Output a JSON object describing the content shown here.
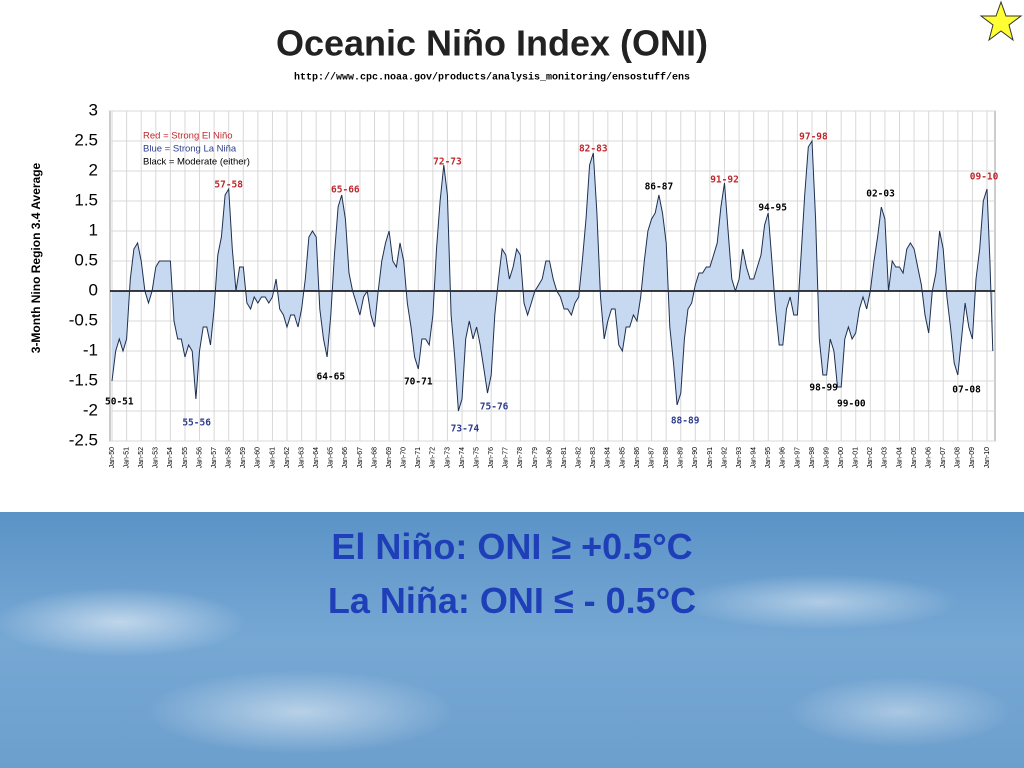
{
  "chart_data": {
    "type": "area",
    "title": "Oceanic Niño Index (ONI)",
    "subtitle": "http://www.cpc.noaa.gov/products/analysis_monitoring/ensostuff/ens",
    "ylabel": "3-Month Nino Region 3.4 Average",
    "legend_notes": [
      {
        "text": "Red = Strong El Niño",
        "color": "#c0272d"
      },
      {
        "text": "Blue = Strong La Niña",
        "color": "#2e3d8f"
      },
      {
        "text": "Black = Moderate (either)",
        "color": "#000000"
      }
    ],
    "fill_color": "#c6d9f1",
    "line_color": "#1f2f4f",
    "grid": true,
    "xlim": [
      1949.86,
      2010.55
    ],
    "ylim": [
      -2.5,
      3
    ],
    "yticks": [
      3,
      2.5,
      2,
      1.5,
      1,
      0.5,
      0,
      -0.5,
      -1,
      -1.5,
      -2,
      -2.5
    ],
    "xticks": [
      {
        "value": 1950,
        "label": "Jan-50"
      },
      {
        "value": 1951,
        "label": "Jan-51"
      },
      {
        "value": 1952,
        "label": "Jan-52"
      },
      {
        "value": 1953,
        "label": "Jan-53"
      },
      {
        "value": 1954,
        "label": "Jan-54"
      },
      {
        "value": 1955,
        "label": "Jan-55"
      },
      {
        "value": 1956,
        "label": "Jan-56"
      },
      {
        "value": 1957,
        "label": "Jan-57"
      },
      {
        "value": 1958,
        "label": "Jan-58"
      },
      {
        "value": 1959,
        "label": "Jan-59"
      },
      {
        "value": 1960,
        "label": "Jan-60"
      },
      {
        "value": 1961,
        "label": "Jan-61"
      },
      {
        "value": 1962,
        "label": "Jan-62"
      },
      {
        "value": 1963,
        "label": "Jan-63"
      },
      {
        "value": 1964,
        "label": "Jan-64"
      },
      {
        "value": 1965,
        "label": "Jan-65"
      },
      {
        "value": 1966,
        "label": "Jan-66"
      },
      {
        "value": 1967,
        "label": "Jan-67"
      },
      {
        "value": 1968,
        "label": "Jan-68"
      },
      {
        "value": 1969,
        "label": "Jan-69"
      },
      {
        "value": 1970,
        "label": "Jan-70"
      },
      {
        "value": 1971,
        "label": "Jan-71"
      },
      {
        "value": 1972,
        "label": "Jan-72"
      },
      {
        "value": 1973,
        "label": "Jan-73"
      },
      {
        "value": 1974,
        "label": "Jan-74"
      },
      {
        "value": 1975,
        "label": "Jan-75"
      },
      {
        "value": 1976,
        "label": "Jan-76"
      },
      {
        "value": 1977,
        "label": "Jan-77"
      },
      {
        "value": 1978,
        "label": "Jan-78"
      },
      {
        "value": 1979,
        "label": "Jan-79"
      },
      {
        "value": 1980,
        "label": "Jan-80"
      },
      {
        "value": 1981,
        "label": "Jan-81"
      },
      {
        "value": 1982,
        "label": "Jan-82"
      },
      {
        "value": 1983,
        "label": "Jan-83"
      },
      {
        "value": 1984,
        "label": "Jan-84"
      },
      {
        "value": 1985,
        "label": "Jan-85"
      },
      {
        "value": 1986,
        "label": "Jan-86"
      },
      {
        "value": 1987,
        "label": "Jan-87"
      },
      {
        "value": 1988,
        "label": "Jan-88"
      },
      {
        "value": 1989,
        "label": "Jan-89"
      },
      {
        "value": 1990,
        "label": "Jan-90"
      },
      {
        "value": 1991,
        "label": "Jan-91"
      },
      {
        "value": 1992,
        "label": "Jan-92"
      },
      {
        "value": 1993,
        "label": "Jan-93"
      },
      {
        "value": 1994,
        "label": "Jan-94"
      },
      {
        "value": 1995,
        "label": "Jan-95"
      },
      {
        "value": 1996,
        "label": "Jan-96"
      },
      {
        "value": 1997,
        "label": "Jan-97"
      },
      {
        "value": 1998,
        "label": "Jan-98"
      },
      {
        "value": 1999,
        "label": "Jan-99"
      },
      {
        "value": 2000,
        "label": "Jan-00"
      },
      {
        "value": 2001,
        "label": "Jan-01"
      },
      {
        "value": 2002,
        "label": "Jan-02"
      },
      {
        "value": 2003,
        "label": "Jan-03"
      },
      {
        "value": 2004,
        "label": "Jan-04"
      },
      {
        "value": 2005,
        "label": "Jan-05"
      },
      {
        "value": 2006,
        "label": "Jan-06"
      },
      {
        "value": 2007,
        "label": "Jan-07"
      },
      {
        "value": 2008,
        "label": "Jan-08"
      },
      {
        "value": 2009,
        "label": "Jan-09"
      },
      {
        "value": 2010,
        "label": "Jan-10"
      }
    ],
    "x": [
      1950,
      1950.25,
      1950.5,
      1950.75,
      1951,
      1951.25,
      1951.5,
      1951.75,
      1952,
      1952.25,
      1952.5,
      1952.75,
      1953,
      1953.25,
      1953.5,
      1953.75,
      1954,
      1954.25,
      1954.5,
      1954.75,
      1955,
      1955.25,
      1955.5,
      1955.75,
      1956,
      1956.25,
      1956.5,
      1956.75,
      1957,
      1957.25,
      1957.5,
      1957.75,
      1958,
      1958.25,
      1958.5,
      1958.75,
      1959,
      1959.25,
      1959.5,
      1959.75,
      1960,
      1960.25,
      1960.5,
      1960.75,
      1961,
      1961.25,
      1961.5,
      1961.75,
      1962,
      1962.25,
      1962.5,
      1962.75,
      1963,
      1963.25,
      1963.5,
      1963.75,
      1964,
      1964.25,
      1964.5,
      1964.75,
      1965,
      1965.25,
      1965.5,
      1965.75,
      1966,
      1966.25,
      1966.5,
      1966.75,
      1967,
      1967.25,
      1967.5,
      1967.75,
      1968,
      1968.25,
      1968.5,
      1968.75,
      1969,
      1969.25,
      1969.5,
      1969.75,
      1970,
      1970.25,
      1970.5,
      1970.75,
      1971,
      1971.25,
      1971.5,
      1971.75,
      1972,
      1972.25,
      1972.5,
      1972.75,
      1973,
      1973.25,
      1973.5,
      1973.75,
      1974,
      1974.25,
      1974.5,
      1974.75,
      1975,
      1975.25,
      1975.5,
      1975.75,
      1976,
      1976.25,
      1976.5,
      1976.75,
      1977,
      1977.25,
      1977.5,
      1977.75,
      1978,
      1978.25,
      1978.5,
      1978.75,
      1979,
      1979.25,
      1979.5,
      1979.75,
      1980,
      1980.25,
      1980.5,
      1980.75,
      1981,
      1981.25,
      1981.5,
      1981.75,
      1982,
      1982.25,
      1982.5,
      1982.75,
      1983,
      1983.25,
      1983.5,
      1983.75,
      1984,
      1984.25,
      1984.5,
      1984.75,
      1985,
      1985.25,
      1985.5,
      1985.75,
      1986,
      1986.25,
      1986.5,
      1986.75,
      1987,
      1987.25,
      1987.5,
      1987.75,
      1988,
      1988.25,
      1988.5,
      1988.75,
      1989,
      1989.25,
      1989.5,
      1989.75,
      1990,
      1990.25,
      1990.5,
      1990.75,
      1991,
      1991.25,
      1991.5,
      1991.75,
      1992,
      1992.25,
      1992.5,
      1992.75,
      1993,
      1993.25,
      1993.5,
      1993.75,
      1994,
      1994.25,
      1994.5,
      1994.75,
      1995,
      1995.25,
      1995.5,
      1995.75,
      1996,
      1996.25,
      1996.5,
      1996.75,
      1997,
      1997.25,
      1997.5,
      1997.75,
      1998,
      1998.25,
      1998.5,
      1998.75,
      1999,
      1999.25,
      1999.5,
      1999.75,
      2000,
      2000.25,
      2000.5,
      2000.75,
      2001,
      2001.25,
      2001.5,
      2001.75,
      2002,
      2002.25,
      2002.5,
      2002.75,
      2003,
      2003.25,
      2003.5,
      2003.75,
      2004,
      2004.25,
      2004.5,
      2004.75,
      2005,
      2005.25,
      2005.5,
      2005.75,
      2006,
      2006.25,
      2006.5,
      2006.75,
      2007,
      2007.25,
      2007.5,
      2007.75,
      2008,
      2008.25,
      2008.5,
      2008.75,
      2009,
      2009.25,
      2009.5,
      2009.75,
      2010,
      2010.2,
      2010.4
    ],
    "values": [
      -1.5,
      -1.0,
      -0.8,
      -1.0,
      -0.8,
      0.2,
      0.7,
      0.8,
      0.5,
      0.0,
      -0.2,
      0.0,
      0.4,
      0.5,
      0.5,
      0.5,
      0.5,
      -0.5,
      -0.8,
      -0.8,
      -1.1,
      -0.9,
      -1.0,
      -1.8,
      -1.0,
      -0.6,
      -0.6,
      -0.9,
      -0.3,
      0.6,
      0.9,
      1.6,
      1.7,
      0.7,
      0.0,
      0.4,
      0.4,
      -0.2,
      -0.3,
      -0.1,
      -0.2,
      -0.1,
      -0.1,
      -0.2,
      -0.1,
      0.2,
      -0.3,
      -0.4,
      -0.6,
      -0.4,
      -0.4,
      -0.6,
      -0.3,
      0.2,
      0.9,
      1.0,
      0.9,
      -0.3,
      -0.8,
      -1.1,
      -0.4,
      0.6,
      1.4,
      1.6,
      1.2,
      0.3,
      0.0,
      -0.2,
      -0.4,
      -0.1,
      0.0,
      -0.4,
      -0.6,
      0.0,
      0.5,
      0.8,
      1.0,
      0.5,
      0.4,
      0.8,
      0.5,
      -0.2,
      -0.6,
      -1.1,
      -1.3,
      -0.8,
      -0.8,
      -0.9,
      -0.4,
      0.7,
      1.5,
      2.1,
      1.6,
      -0.4,
      -1.1,
      -2.0,
      -1.8,
      -0.8,
      -0.5,
      -0.8,
      -0.6,
      -0.9,
      -1.3,
      -1.7,
      -1.4,
      -0.4,
      0.2,
      0.7,
      0.6,
      0.2,
      0.4,
      0.7,
      0.6,
      -0.2,
      -0.4,
      -0.2,
      0.0,
      0.1,
      0.2,
      0.5,
      0.5,
      0.2,
      0.0,
      -0.1,
      -0.3,
      -0.3,
      -0.4,
      -0.2,
      -0.1,
      0.5,
      1.2,
      2.1,
      2.3,
      1.3,
      -0.1,
      -0.8,
      -0.5,
      -0.3,
      -0.3,
      -0.9,
      -1.0,
      -0.6,
      -0.6,
      -0.4,
      -0.5,
      -0.1,
      0.5,
      1.0,
      1.2,
      1.3,
      1.6,
      1.3,
      0.8,
      -0.6,
      -1.2,
      -1.9,
      -1.7,
      -0.8,
      -0.3,
      -0.2,
      0.1,
      0.3,
      0.3,
      0.4,
      0.4,
      0.6,
      0.8,
      1.4,
      1.8,
      1.0,
      0.2,
      0.0,
      0.2,
      0.7,
      0.4,
      0.2,
      0.2,
      0.4,
      0.6,
      1.1,
      1.3,
      0.5,
      -0.3,
      -0.9,
      -0.9,
      -0.3,
      -0.1,
      -0.4,
      -0.4,
      0.6,
      1.6,
      2.4,
      2.5,
      1.2,
      -0.8,
      -1.4,
      -1.4,
      -0.8,
      -1.0,
      -1.6,
      -1.6,
      -0.8,
      -0.6,
      -0.8,
      -0.7,
      -0.3,
      -0.1,
      -0.3,
      0.0,
      0.5,
      0.9,
      1.4,
      1.2,
      0.0,
      0.5,
      0.4,
      0.4,
      0.3,
      0.7,
      0.8,
      0.7,
      0.4,
      0.1,
      -0.4,
      -0.7,
      0.0,
      0.3,
      1.0,
      0.7,
      -0.1,
      -0.6,
      -1.2,
      -1.4,
      -0.8,
      -0.2,
      -0.6,
      -0.8,
      0.2,
      0.7,
      1.5,
      1.7,
      0.5,
      -1.0
    ],
    "annotations": [
      {
        "text": "50-51",
        "x": 1950.5,
        "y": -1.85,
        "color": "#000000"
      },
      {
        "text": "55-56",
        "x": 1955.8,
        "y": -2.2,
        "color": "#2e3d8f"
      },
      {
        "text": "57-58",
        "x": 1958.0,
        "y": 1.77,
        "color": "#c0272d"
      },
      {
        "text": "64-65",
        "x": 1965.0,
        "y": -1.43,
        "color": "#000000"
      },
      {
        "text": "65-66",
        "x": 1966.0,
        "y": 1.68,
        "color": "#c0272d"
      },
      {
        "text": "70-71",
        "x": 1971.0,
        "y": -1.52,
        "color": "#000000"
      },
      {
        "text": "72-73",
        "x": 1973.0,
        "y": 2.15,
        "color": "#c0272d"
      },
      {
        "text": "73-74",
        "x": 1974.2,
        "y": -2.3,
        "color": "#2e3d8f"
      },
      {
        "text": "75-76",
        "x": 1976.2,
        "y": -1.93,
        "color": "#2e3d8f"
      },
      {
        "text": "82-83",
        "x": 1983.0,
        "y": 2.37,
        "color": "#c0272d"
      },
      {
        "text": "86-87",
        "x": 1987.5,
        "y": 1.73,
        "color": "#000000"
      },
      {
        "text": "88-89",
        "x": 1989.3,
        "y": -2.17,
        "color": "#2e3d8f"
      },
      {
        "text": "91-92",
        "x": 1992.0,
        "y": 1.85,
        "color": "#c0272d"
      },
      {
        "text": "94-95",
        "x": 1995.3,
        "y": 1.38,
        "color": "#000000"
      },
      {
        "text": "97-98",
        "x": 1998.1,
        "y": 2.57,
        "color": "#c0272d"
      },
      {
        "text": "98-99",
        "x": 1998.8,
        "y": -1.62,
        "color": "#000000"
      },
      {
        "text": "99-00",
        "x": 2000.7,
        "y": -1.88,
        "color": "#000000"
      },
      {
        "text": "02-03",
        "x": 2002.7,
        "y": 1.62,
        "color": "#000000"
      },
      {
        "text": "07-08",
        "x": 2008.6,
        "y": -1.65,
        "color": "#000000"
      },
      {
        "text": "09-10",
        "x": 2009.8,
        "y": 1.9,
        "color": "#c0272d"
      }
    ]
  },
  "slide": {
    "lines": [
      "El Niño: ONI ≥  +0.5°C",
      "La Niña: ONI ≤  - 0.5°C"
    ]
  }
}
